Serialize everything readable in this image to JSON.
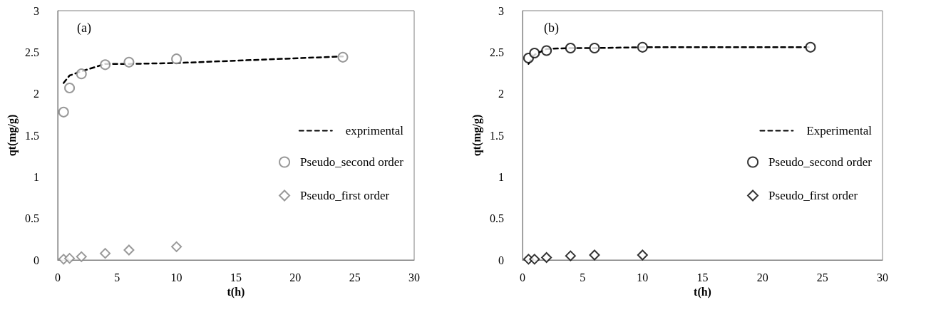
{
  "chart_data": [
    {
      "type": "scatter",
      "xlabel": "t(h)",
      "ylabel": "qt(mg/g)",
      "annotations": [
        "(a)"
      ],
      "xlim": [
        0,
        30
      ],
      "xticks": [
        0,
        5,
        10,
        15,
        20,
        25,
        30
      ],
      "ylim": [
        0,
        3
      ],
      "yticks": [
        0,
        0.5,
        1,
        1.5,
        2,
        2.5,
        3
      ],
      "grid": false,
      "legend": "right",
      "series": [
        {
          "name": "exprimental",
          "type": "line",
          "line_style": "dashed",
          "marker": "none",
          "color": "#000000",
          "x": [
            0.5,
            1,
            2,
            4,
            6,
            10,
            24
          ],
          "values": [
            2.13,
            2.22,
            2.27,
            2.36,
            2.36,
            2.37,
            2.45
          ]
        },
        {
          "name": "Pseudo_second order",
          "type": "scatter",
          "marker": "circle",
          "color": "#808080",
          "x": [
            0.5,
            1,
            2,
            4,
            6,
            10,
            24
          ],
          "values": [
            1.78,
            2.07,
            2.24,
            2.35,
            2.38,
            2.42,
            2.44
          ]
        },
        {
          "name": "Pseudo_first order",
          "type": "scatter",
          "marker": "diamond",
          "color": "#808080",
          "x": [
            0.5,
            1,
            2,
            4,
            6,
            10
          ],
          "values": [
            0.01,
            0.02,
            0.04,
            0.08,
            0.12,
            0.16
          ]
        }
      ]
    },
    {
      "type": "scatter",
      "xlabel": "t(h)",
      "ylabel": "qt(mg/g)",
      "annotations": [
        "(b)"
      ],
      "xlim": [
        0,
        30
      ],
      "xticks": [
        0,
        5,
        10,
        15,
        20,
        25,
        30
      ],
      "ylim": [
        0,
        3
      ],
      "yticks": [
        0,
        0.5,
        1,
        1.5,
        2,
        2.5,
        3
      ],
      "grid": false,
      "legend": "right",
      "series": [
        {
          "name": "Experimental",
          "type": "line",
          "line_style": "dashed",
          "marker": "none",
          "color": "#000000",
          "x": [
            0.5,
            1,
            2,
            4,
            6,
            10,
            24
          ],
          "values": [
            2.36,
            2.47,
            2.54,
            2.55,
            2.55,
            2.56,
            2.56
          ]
        },
        {
          "name": "Pseudo_second order",
          "type": "scatter",
          "marker": "circle",
          "color": "#000000",
          "x": [
            0.5,
            1,
            2,
            4,
            6,
            10,
            24
          ],
          "values": [
            2.43,
            2.49,
            2.52,
            2.55,
            2.55,
            2.56,
            2.56
          ]
        },
        {
          "name": "Pseudo_first order",
          "type": "scatter",
          "marker": "diamond",
          "color": "#000000",
          "x": [
            0.5,
            1,
            2,
            4,
            6,
            10
          ],
          "values": [
            0.01,
            0.01,
            0.03,
            0.05,
            0.06,
            0.06
          ]
        }
      ]
    }
  ]
}
